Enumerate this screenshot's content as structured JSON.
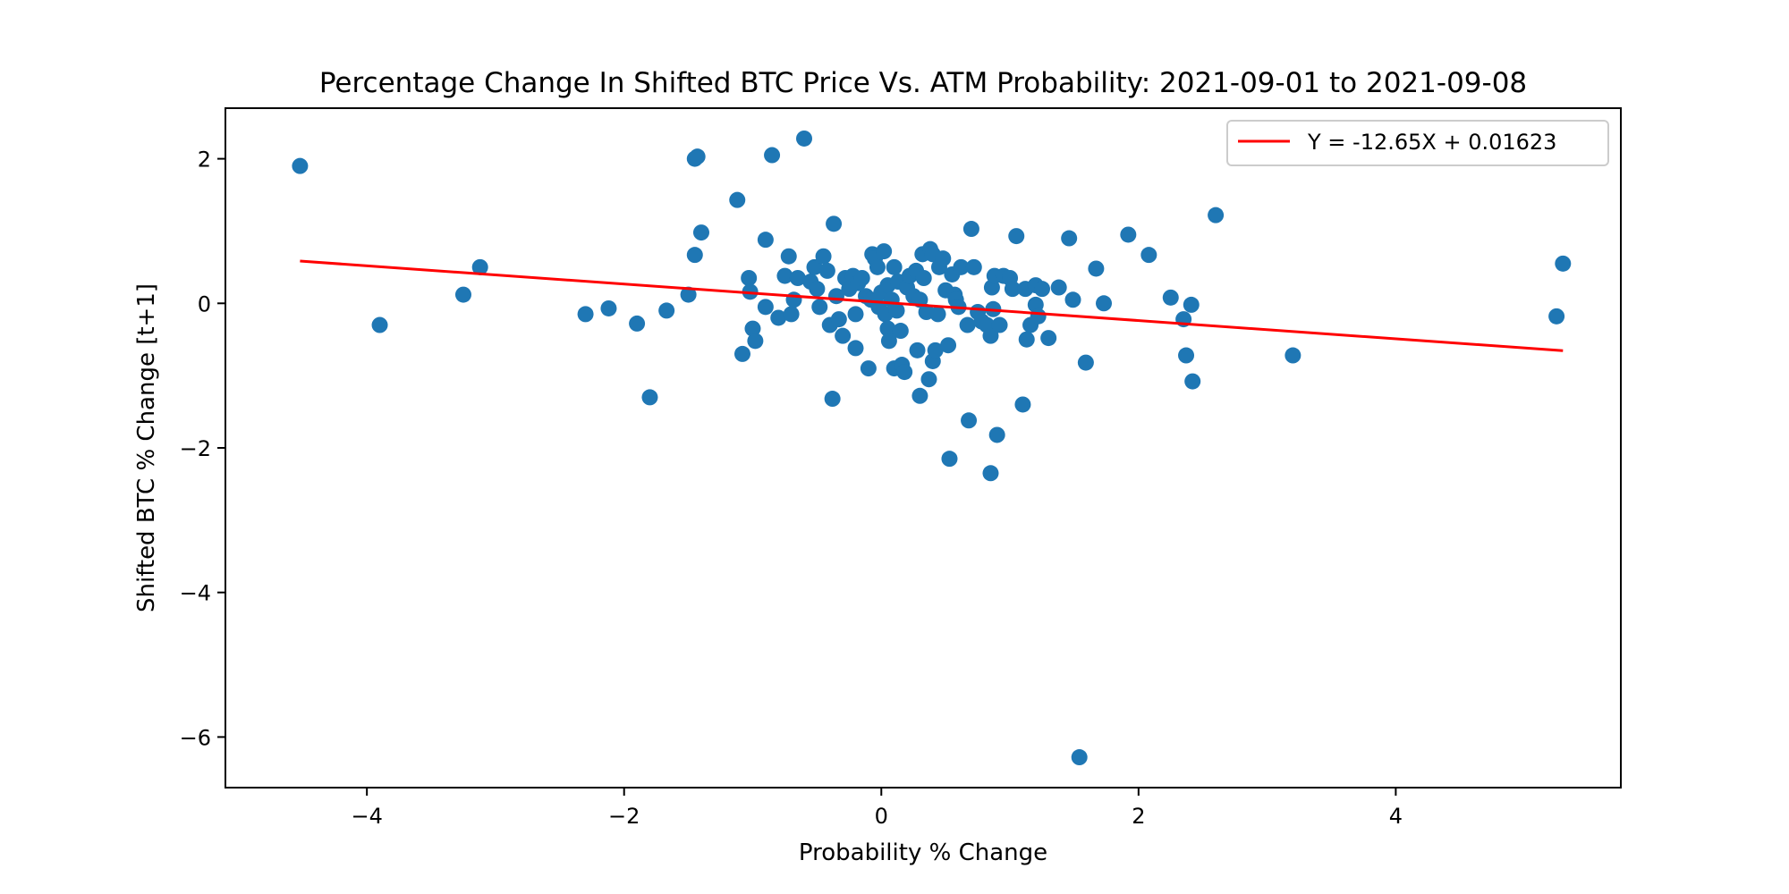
{
  "chart_data": {
    "type": "scatter",
    "title": "Percentage Change In Shifted BTC Price Vs. ATM Probability: 2021-09-01 to 2021-09-08",
    "xlabel": "Probability % Change",
    "ylabel": "Shifted BTC % Change [t+1]",
    "xlim": [
      -5.1,
      5.75
    ],
    "ylim": [
      -6.7,
      2.7
    ],
    "xticks": [
      -4,
      -2,
      0,
      2,
      4
    ],
    "yticks": [
      -6,
      -4,
      -2,
      0,
      2
    ],
    "xtick_labels": [
      "−4",
      "−2",
      "0",
      "2",
      "4"
    ],
    "ytick_labels": [
      "−6",
      "−4",
      "−2",
      "0",
      "2"
    ],
    "grid": false,
    "legend_position": "top-right",
    "colors": {
      "points": "#1f77b4",
      "line": "#ff0000"
    },
    "series": [
      {
        "type": "scatter",
        "points": [
          [
            -4.52,
            1.9
          ],
          [
            -3.9,
            -0.3
          ],
          [
            -3.25,
            0.12
          ],
          [
            -3.12,
            0.5
          ],
          [
            -2.3,
            -0.15
          ],
          [
            -2.12,
            -0.07
          ],
          [
            -1.9,
            -0.28
          ],
          [
            -1.8,
            -1.3
          ],
          [
            -1.67,
            -0.1
          ],
          [
            -1.5,
            0.12
          ],
          [
            -1.45,
            2.0
          ],
          [
            -1.43,
            2.03
          ],
          [
            -1.45,
            0.67
          ],
          [
            -1.4,
            0.98
          ],
          [
            -1.12,
            1.43
          ],
          [
            -1.08,
            -0.7
          ],
          [
            -1.03,
            0.35
          ],
          [
            -1.02,
            0.16
          ],
          [
            -1.0,
            -0.35
          ],
          [
            -0.98,
            -0.52
          ],
          [
            -0.9,
            -0.05
          ],
          [
            -0.9,
            0.88
          ],
          [
            -0.85,
            2.05
          ],
          [
            -0.8,
            -0.2
          ],
          [
            -0.75,
            0.38
          ],
          [
            -0.72,
            0.65
          ],
          [
            -0.7,
            -0.15
          ],
          [
            -0.68,
            0.05
          ],
          [
            -0.65,
            0.35
          ],
          [
            -0.6,
            2.28
          ],
          [
            -0.55,
            0.3
          ],
          [
            -0.52,
            0.5
          ],
          [
            -0.5,
            0.2
          ],
          [
            -0.48,
            -0.05
          ],
          [
            -0.45,
            0.65
          ],
          [
            -0.42,
            0.45
          ],
          [
            -0.4,
            -0.3
          ],
          [
            -0.38,
            -1.32
          ],
          [
            -0.37,
            1.1
          ],
          [
            -0.35,
            0.1
          ],
          [
            -0.33,
            -0.22
          ],
          [
            -0.3,
            -0.45
          ],
          [
            -0.28,
            0.35
          ],
          [
            -0.25,
            0.2
          ],
          [
            -0.22,
            0.38
          ],
          [
            -0.2,
            -0.15
          ],
          [
            -0.2,
            -0.62
          ],
          [
            -0.18,
            0.28
          ],
          [
            -0.15,
            0.35
          ],
          [
            -0.12,
            0.1
          ],
          [
            -0.1,
            -0.9
          ],
          [
            -0.08,
            0.05
          ],
          [
            -0.07,
            0.68
          ],
          [
            -0.05,
            0.62
          ],
          [
            -0.03,
            0.5
          ],
          [
            -0.02,
            -0.05
          ],
          [
            0.0,
            0.15
          ],
          [
            0.02,
            0.72
          ],
          [
            0.03,
            -0.15
          ],
          [
            0.05,
            0.25
          ],
          [
            0.05,
            -0.35
          ],
          [
            0.06,
            -0.52
          ],
          [
            0.08,
            0.05
          ],
          [
            0.1,
            -0.9
          ],
          [
            0.1,
            0.5
          ],
          [
            0.12,
            -0.1
          ],
          [
            0.13,
            0.3
          ],
          [
            0.15,
            -0.38
          ],
          [
            0.16,
            -0.85
          ],
          [
            0.18,
            -0.95
          ],
          [
            0.2,
            0.22
          ],
          [
            0.22,
            0.38
          ],
          [
            0.25,
            0.1
          ],
          [
            0.27,
            0.45
          ],
          [
            0.28,
            -0.65
          ],
          [
            0.3,
            -1.28
          ],
          [
            0.3,
            0.05
          ],
          [
            0.32,
            0.68
          ],
          [
            0.33,
            0.35
          ],
          [
            0.35,
            -0.12
          ],
          [
            0.37,
            -1.05
          ],
          [
            0.38,
            0.75
          ],
          [
            0.4,
            0.68
          ],
          [
            0.4,
            -0.8
          ],
          [
            0.42,
            -0.65
          ],
          [
            0.44,
            -0.15
          ],
          [
            0.45,
            0.5
          ],
          [
            0.48,
            0.62
          ],
          [
            0.5,
            0.18
          ],
          [
            0.52,
            -0.58
          ],
          [
            0.53,
            -2.15
          ],
          [
            0.55,
            0.4
          ],
          [
            0.57,
            0.12
          ],
          [
            0.58,
            0.05
          ],
          [
            0.6,
            -0.05
          ],
          [
            0.62,
            0.5
          ],
          [
            0.67,
            -0.3
          ],
          [
            0.68,
            -1.62
          ],
          [
            0.7,
            1.03
          ],
          [
            0.72,
            0.5
          ],
          [
            0.75,
            -0.12
          ],
          [
            0.78,
            -0.25
          ],
          [
            0.82,
            -0.3
          ],
          [
            0.85,
            -0.45
          ],
          [
            0.85,
            -2.35
          ],
          [
            0.86,
            0.22
          ],
          [
            0.87,
            -0.08
          ],
          [
            0.88,
            0.38
          ],
          [
            0.9,
            -1.82
          ],
          [
            0.92,
            -0.3
          ],
          [
            0.95,
            0.38
          ],
          [
            1.0,
            0.35
          ],
          [
            1.02,
            0.2
          ],
          [
            1.05,
            0.93
          ],
          [
            1.1,
            -1.4
          ],
          [
            1.12,
            0.2
          ],
          [
            1.13,
            -0.5
          ],
          [
            1.16,
            -0.3
          ],
          [
            1.2,
            0.25
          ],
          [
            1.2,
            -0.02
          ],
          [
            1.22,
            -0.18
          ],
          [
            1.25,
            0.2
          ],
          [
            1.3,
            -0.48
          ],
          [
            1.38,
            0.22
          ],
          [
            1.46,
            0.9
          ],
          [
            1.49,
            0.05
          ],
          [
            1.54,
            -6.28
          ],
          [
            1.59,
            -0.82
          ],
          [
            1.67,
            0.48
          ],
          [
            1.73,
            0.0
          ],
          [
            1.92,
            0.95
          ],
          [
            2.08,
            0.67
          ],
          [
            2.25,
            0.08
          ],
          [
            2.35,
            -0.22
          ],
          [
            2.37,
            -0.72
          ],
          [
            2.41,
            -0.02
          ],
          [
            2.42,
            -1.08
          ],
          [
            2.6,
            1.22
          ],
          [
            3.2,
            -0.72
          ],
          [
            5.25,
            -0.18
          ],
          [
            5.3,
            0.55
          ]
        ]
      },
      {
        "type": "line",
        "name": "Y = -12.65X + 0.01623",
        "points": [
          [
            -4.52,
            0.585
          ],
          [
            5.3,
            -0.655
          ]
        ]
      }
    ]
  }
}
